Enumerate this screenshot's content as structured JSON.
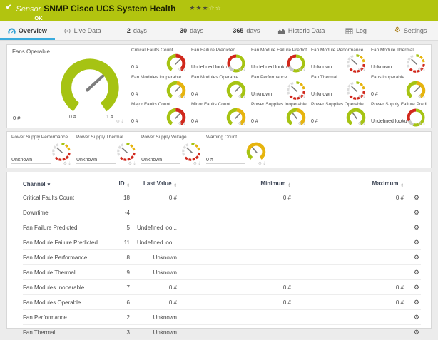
{
  "colors": {
    "green": "#a6c313",
    "red": "#d1281c",
    "yellow": "#e6b40e",
    "blue": "#2e9fd4",
    "topbar": "#b2c40f",
    "needle": "#7d7d7d",
    "gray_seg": "#dcdcdc",
    "ring_gap": "#c9c9c9"
  },
  "icons": {
    "check": "✔",
    "gear": "⚙",
    "pin": "⇣",
    "sort_up": "▲",
    "sort_down": "▼",
    "sorted": "▾",
    "row_gear": "⚙"
  },
  "header": {
    "kind": "Sensor",
    "title": "SNMP Cisco UCS System Health",
    "status": "OK",
    "stars_filled": "★★★",
    "stars_empty": "☆☆"
  },
  "tabs": [
    {
      "id": "overview",
      "pre": "",
      "label": "Overview",
      "icon": "gauge-icon",
      "active": true
    },
    {
      "id": "live-data",
      "pre": "",
      "label": "Live Data",
      "icon": "broadcast-icon",
      "active": false
    },
    {
      "id": "2-days",
      "pre": "2",
      "label": "days",
      "icon": "",
      "active": false
    },
    {
      "id": "30-days",
      "pre": "30",
      "label": "days",
      "icon": "",
      "active": false
    },
    {
      "id": "365-days",
      "pre": "365",
      "label": "days",
      "icon": "",
      "active": false
    },
    {
      "id": "historic-data",
      "pre": "",
      "label": "Historic Data",
      "icon": "chart-icon",
      "active": false
    },
    {
      "id": "log",
      "pre": "",
      "label": "Log",
      "icon": "table-icon",
      "active": false
    },
    {
      "id": "settings",
      "pre": "",
      "label": "Settings",
      "icon": "gear-icon",
      "active": false
    }
  ],
  "big_gauge": {
    "title": "Fans Operable",
    "value": "0 #",
    "scale_min": "0 #",
    "scale_max": "1 #",
    "type": "green",
    "needle": 48
  },
  "gauges_row1": [
    {
      "title": "Critical Faults Count",
      "value": "0 #",
      "type": "green-red",
      "needle": 45
    },
    {
      "title": "Fan Failure Predicted",
      "value": "Undefined lookup v",
      "type": "ring",
      "needle": null
    },
    {
      "title": "Fan Module Failure Predicted",
      "value": "Undefined lookup v",
      "type": "ring",
      "needle": null
    },
    {
      "title": "Fan Module Performance",
      "value": "Unknown",
      "type": "segments",
      "needle": -47
    },
    {
      "title": "Fan Module Thermal",
      "value": "Unknown",
      "type": "segments",
      "needle": -47
    },
    {
      "title": "Fan Modules Inoperable",
      "value": "0 #",
      "type": "green-yellow",
      "needle": 45
    },
    {
      "title": "Fan Modules Operable",
      "value": "0 #",
      "type": "green",
      "needle": 45
    },
    {
      "title": "Fan Performance",
      "value": "Unknown",
      "type": "segments",
      "needle": -47
    },
    {
      "title": "Fan Thermal",
      "value": "Unknown",
      "type": "segments",
      "needle": -47
    },
    {
      "title": "Fans Inoperable",
      "value": "0 #",
      "type": "green-yellow",
      "needle": 45
    },
    {
      "title": "Major Faults Count",
      "value": "0 #",
      "type": "green-red",
      "needle": 45
    },
    {
      "title": "Minor Faults Count",
      "value": "0 #",
      "type": "green-yellow",
      "needle": 45
    },
    {
      "title": "Power Supplies Inoperable",
      "value": "0 #",
      "type": "green-yellow",
      "needle": -38
    },
    {
      "title": "Power Supplies Operable",
      "value": "0 #",
      "type": "green",
      "needle": -35
    },
    {
      "title": "Power Supply Failure Predicted",
      "value": "Undefined lookup v",
      "type": "ring",
      "needle": null
    }
  ],
  "gauges_row2": [
    {
      "title": "Power Supply Performance",
      "value": "Unknown",
      "type": "segments",
      "needle": -47
    },
    {
      "title": "Power Supply Thermal",
      "value": "Unknown",
      "type": "segments",
      "needle": -47
    },
    {
      "title": "Power Supply Voltage",
      "value": "Unknown",
      "type": "segments",
      "needle": -47
    },
    {
      "title": "Warning Count",
      "value": "0 #",
      "type": "yellow",
      "needle": -40
    }
  ],
  "table": {
    "columns": [
      {
        "label": "Channel",
        "sorted": true,
        "align": "left"
      },
      {
        "label": "ID",
        "sorted": false,
        "align": "right"
      },
      {
        "label": "Last Value",
        "sorted": false,
        "align": "right"
      },
      {
        "label": "Minimum",
        "sorted": false,
        "align": "right"
      },
      {
        "label": "Maximum",
        "sorted": false,
        "align": "right"
      }
    ],
    "rows": [
      {
        "channel": "Critical Faults Count",
        "id": "18",
        "last": "0 #",
        "min": "0 #",
        "max": "0 #"
      },
      {
        "channel": "Downtime",
        "id": "-4",
        "last": "",
        "min": "",
        "max": ""
      },
      {
        "channel": "Fan Failure Predicted",
        "id": "5",
        "last": "Undefined loo...",
        "min": "",
        "max": ""
      },
      {
        "channel": "Fan Module Failure Predicted",
        "id": "11",
        "last": "Undefined loo...",
        "min": "",
        "max": ""
      },
      {
        "channel": "Fan Module Performance",
        "id": "8",
        "last": "Unknown",
        "min": "",
        "max": ""
      },
      {
        "channel": "Fan Module Thermal",
        "id": "9",
        "last": "Unknown",
        "min": "",
        "max": ""
      },
      {
        "channel": "Fan Modules Inoperable",
        "id": "7",
        "last": "0 #",
        "min": "0 #",
        "max": "0 #"
      },
      {
        "channel": "Fan Modules Operable",
        "id": "6",
        "last": "0 #",
        "min": "0 #",
        "max": "0 #"
      },
      {
        "channel": "Fan Performance",
        "id": "2",
        "last": "Unknown",
        "min": "",
        "max": ""
      },
      {
        "channel": "Fan Thermal",
        "id": "3",
        "last": "Unknown",
        "min": "",
        "max": ""
      }
    ]
  }
}
